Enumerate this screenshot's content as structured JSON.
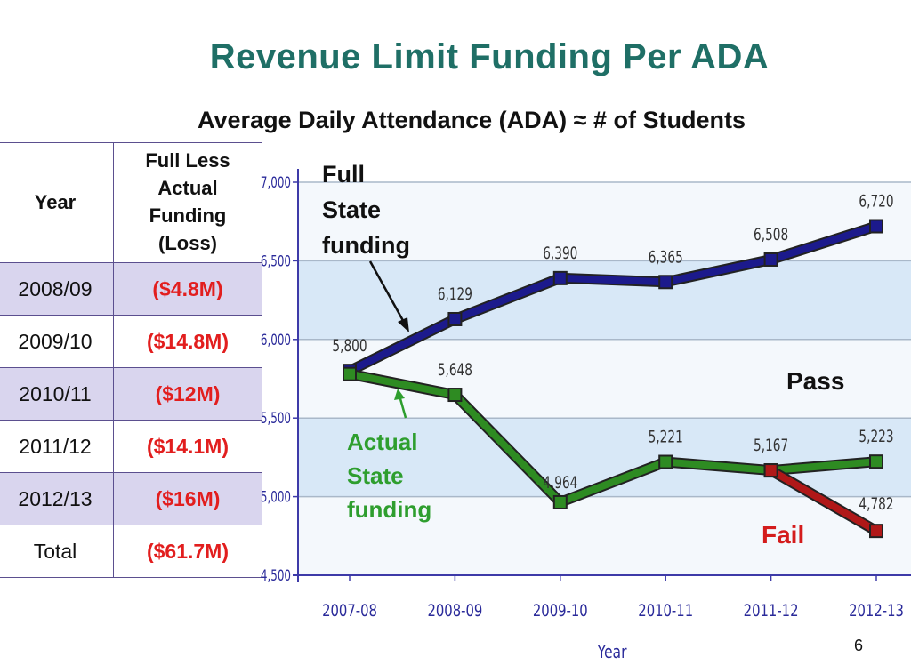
{
  "slide": {
    "title": "Revenue Limit Funding Per ADA",
    "subtitle": "Average Daily Attendance (ADA) ≈ # of Students",
    "page_number": "6"
  },
  "table": {
    "headers": [
      "Year",
      "Full Less Actual Funding (Loss)"
    ],
    "rows": [
      {
        "year": "2008/09",
        "loss": "($4.8M)"
      },
      {
        "year": "2009/10",
        "loss": "($14.8M)"
      },
      {
        "year": "2010/11",
        "loss": "($12M)"
      },
      {
        "year": "2011/12",
        "loss": "($14.1M)"
      },
      {
        "year": "2012/13",
        "loss": "($16M)"
      },
      {
        "year": "Total",
        "loss": "($61.7M)"
      }
    ],
    "loss_color": "#e21e1e",
    "shade_color": "#d9d5ee"
  },
  "chart_data": {
    "type": "line",
    "x": [
      "2007-08",
      "2008-09",
      "2009-10",
      "2010-11",
      "2011-12",
      "2012-13"
    ],
    "xlabel": "Year",
    "ylabel": "",
    "ylim": [
      4500,
      7000
    ],
    "yticks": [
      "4,500",
      "5,000",
      "5,500",
      "6,000",
      "6,500",
      "7,000"
    ],
    "grid": true,
    "series": [
      {
        "name": "Full State funding",
        "color": "#1c1a8c",
        "values": [
          5800,
          6129,
          6390,
          6365,
          6508,
          6720
        ],
        "labels": [
          "5,800",
          "6,129",
          "6,390",
          "6,365",
          "6,508",
          "6,720"
        ]
      },
      {
        "name": "Actual State funding",
        "color": "#2e8b22",
        "values": [
          5780,
          5648,
          4964,
          5221,
          5167,
          5223
        ],
        "labels": [
          "",
          "5,648",
          "4,964",
          "5,221",
          "5,167",
          "5,223"
        ]
      },
      {
        "name": "Fail",
        "color": "#b01818",
        "x": [
          "2011-12",
          "2012-13"
        ],
        "values": [
          5167,
          4782
        ],
        "labels": [
          "",
          "4,782"
        ]
      }
    ],
    "annotations": {
      "full_state": "Full State funding",
      "actual_state": "Actual State funding",
      "pass": "Pass",
      "fail": "Fail"
    }
  }
}
